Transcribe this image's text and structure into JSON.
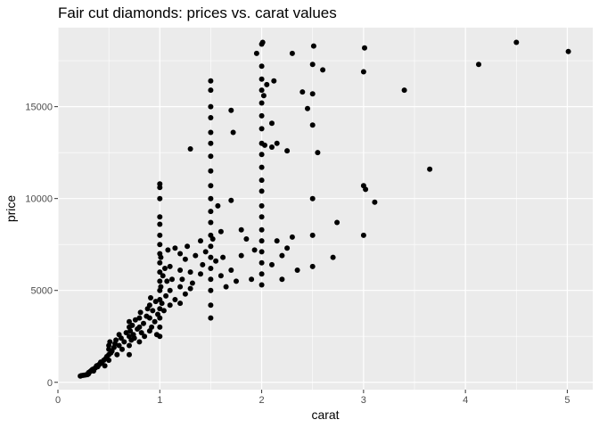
{
  "chart_data": {
    "type": "scatter",
    "title": "Fair cut diamonds: prices vs. carat values",
    "xlabel": "carat",
    "ylabel": "price",
    "xlim": [
      0,
      5.25
    ],
    "ylim": [
      -400,
      19300
    ],
    "x_ticks": [
      0,
      1,
      2,
      3,
      4,
      5
    ],
    "x_tick_labels": [
      "0",
      "1",
      "2",
      "3",
      "4",
      "5"
    ],
    "y_ticks": [
      0,
      5000,
      10000,
      15000
    ],
    "y_tick_labels": [
      "0",
      "5000",
      "10000",
      "15000"
    ],
    "grid": true,
    "legend": "none",
    "colors": {
      "panel": "#ebebeb",
      "grid": "#ffffff",
      "point": "#000000"
    },
    "series": [
      {
        "values": [
          [
            0.22,
            337
          ],
          [
            0.23,
            360
          ],
          [
            0.25,
            380
          ],
          [
            0.27,
            400
          ],
          [
            0.29,
            420
          ],
          [
            0.3,
            460
          ],
          [
            0.3,
            520
          ],
          [
            0.31,
            560
          ],
          [
            0.32,
            600
          ],
          [
            0.33,
            650
          ],
          [
            0.34,
            700
          ],
          [
            0.35,
            620
          ],
          [
            0.36,
            750
          ],
          [
            0.37,
            800
          ],
          [
            0.38,
            900
          ],
          [
            0.39,
            850
          ],
          [
            0.4,
            950
          ],
          [
            0.41,
            1000
          ],
          [
            0.42,
            1100
          ],
          [
            0.43,
            1050
          ],
          [
            0.45,
            1200
          ],
          [
            0.46,
            900
          ],
          [
            0.47,
            1300
          ],
          [
            0.48,
            1400
          ],
          [
            0.5,
            1500
          ],
          [
            0.5,
            1800
          ],
          [
            0.5,
            2000
          ],
          [
            0.5,
            1200
          ],
          [
            0.51,
            2200
          ],
          [
            0.52,
            1600
          ],
          [
            0.53,
            1700
          ],
          [
            0.55,
            1900
          ],
          [
            0.56,
            2100
          ],
          [
            0.57,
            2300
          ],
          [
            0.58,
            1500
          ],
          [
            0.6,
            2000
          ],
          [
            0.6,
            2600
          ],
          [
            0.62,
            2400
          ],
          [
            0.63,
            1800
          ],
          [
            0.65,
            2200
          ],
          [
            0.67,
            2700
          ],
          [
            0.7,
            1500
          ],
          [
            0.7,
            2000
          ],
          [
            0.7,
            2500
          ],
          [
            0.7,
            3000
          ],
          [
            0.7,
            3300
          ],
          [
            0.71,
            2800
          ],
          [
            0.72,
            2300
          ],
          [
            0.73,
            3100
          ],
          [
            0.74,
            2600
          ],
          [
            0.75,
            2400
          ],
          [
            0.76,
            3400
          ],
          [
            0.78,
            2900
          ],
          [
            0.8,
            2200
          ],
          [
            0.8,
            3000
          ],
          [
            0.8,
            3500
          ],
          [
            0.81,
            3800
          ],
          [
            0.82,
            2700
          ],
          [
            0.84,
            3200
          ],
          [
            0.85,
            2500
          ],
          [
            0.87,
            3600
          ],
          [
            0.88,
            4000
          ],
          [
            0.9,
            2800
          ],
          [
            0.9,
            3500
          ],
          [
            0.9,
            4200
          ],
          [
            0.91,
            4600
          ],
          [
            0.92,
            3000
          ],
          [
            0.93,
            3900
          ],
          [
            0.95,
            3300
          ],
          [
            0.96,
            4400
          ],
          [
            0.97,
            2600
          ],
          [
            0.98,
            3700
          ],
          [
            1.0,
            2500
          ],
          [
            1.0,
            3000
          ],
          [
            1.0,
            3500
          ],
          [
            1.0,
            4000
          ],
          [
            1.0,
            4500
          ],
          [
            1.0,
            5000
          ],
          [
            1.0,
            5500
          ],
          [
            1.0,
            6000
          ],
          [
            1.0,
            6500
          ],
          [
            1.0,
            7000
          ],
          [
            1.0,
            7500
          ],
          [
            1.0,
            8000
          ],
          [
            1.0,
            8600
          ],
          [
            1.0,
            9000
          ],
          [
            1.0,
            10000
          ],
          [
            1.0,
            10600
          ],
          [
            1.0,
            10800
          ],
          [
            1.01,
            5200
          ],
          [
            1.01,
            6800
          ],
          [
            1.02,
            4300
          ],
          [
            1.03,
            5800
          ],
          [
            1.04,
            3900
          ],
          [
            1.05,
            6200
          ],
          [
            1.06,
            4700
          ],
          [
            1.07,
            5500
          ],
          [
            1.08,
            7200
          ],
          [
            1.1,
            4200
          ],
          [
            1.1,
            5000
          ],
          [
            1.1,
            6300
          ],
          [
            1.12,
            5600
          ],
          [
            1.15,
            4500
          ],
          [
            1.15,
            7300
          ],
          [
            1.2,
            4300
          ],
          [
            1.2,
            5200
          ],
          [
            1.2,
            6100
          ],
          [
            1.2,
            7000
          ],
          [
            1.22,
            5600
          ],
          [
            1.25,
            4800
          ],
          [
            1.25,
            6700
          ],
          [
            1.27,
            7400
          ],
          [
            1.3,
            5100
          ],
          [
            1.3,
            6000
          ],
          [
            1.3,
            12700
          ],
          [
            1.32,
            5400
          ],
          [
            1.35,
            6900
          ],
          [
            1.4,
            5900
          ],
          [
            1.4,
            7700
          ],
          [
            1.42,
            6400
          ],
          [
            1.45,
            7100
          ],
          [
            1.5,
            3500
          ],
          [
            1.5,
            4200
          ],
          [
            1.5,
            5000
          ],
          [
            1.5,
            5600
          ],
          [
            1.5,
            6200
          ],
          [
            1.5,
            6800
          ],
          [
            1.5,
            7400
          ],
          [
            1.5,
            8000
          ],
          [
            1.5,
            8700
          ],
          [
            1.5,
            9300
          ],
          [
            1.5,
            10000
          ],
          [
            1.5,
            10700
          ],
          [
            1.5,
            11500
          ],
          [
            1.5,
            12300
          ],
          [
            1.5,
            13000
          ],
          [
            1.5,
            13600
          ],
          [
            1.5,
            14400
          ],
          [
            1.5,
            15000
          ],
          [
            1.5,
            15900
          ],
          [
            1.5,
            16400
          ],
          [
            1.52,
            7800
          ],
          [
            1.55,
            6600
          ],
          [
            1.57,
            9600
          ],
          [
            1.6,
            5800
          ],
          [
            1.6,
            8200
          ],
          [
            1.62,
            6800
          ],
          [
            1.65,
            5200
          ],
          [
            1.7,
            6100
          ],
          [
            1.7,
            9900
          ],
          [
            1.7,
            14800
          ],
          [
            1.72,
            13600
          ],
          [
            1.75,
            5500
          ],
          [
            1.8,
            8300
          ],
          [
            1.8,
            6900
          ],
          [
            1.85,
            7800
          ],
          [
            1.9,
            5600
          ],
          [
            1.93,
            7200
          ],
          [
            1.95,
            17900
          ],
          [
            2.0,
            5300
          ],
          [
            2.0,
            5900
          ],
          [
            2.0,
            6500
          ],
          [
            2.0,
            7100
          ],
          [
            2.0,
            7700
          ],
          [
            2.0,
            8300
          ],
          [
            2.0,
            9000
          ],
          [
            2.0,
            9600
          ],
          [
            2.0,
            10400
          ],
          [
            2.0,
            11000
          ],
          [
            2.0,
            11700
          ],
          [
            2.0,
            12400
          ],
          [
            2.0,
            13000
          ],
          [
            2.0,
            13800
          ],
          [
            2.0,
            14500
          ],
          [
            2.0,
            15200
          ],
          [
            2.0,
            15900
          ],
          [
            2.0,
            16500
          ],
          [
            2.0,
            17200
          ],
          [
            2.0,
            18400
          ],
          [
            2.01,
            18500
          ],
          [
            2.02,
            15600
          ],
          [
            2.03,
            12900
          ],
          [
            2.05,
            16200
          ],
          [
            2.1,
            6400
          ],
          [
            2.1,
            12800
          ],
          [
            2.1,
            14100
          ],
          [
            2.12,
            16400
          ],
          [
            2.15,
            7700
          ],
          [
            2.15,
            13000
          ],
          [
            2.2,
            5600
          ],
          [
            2.2,
            6900
          ],
          [
            2.25,
            7300
          ],
          [
            2.25,
            12600
          ],
          [
            2.3,
            7900
          ],
          [
            2.3,
            17900
          ],
          [
            2.35,
            6100
          ],
          [
            2.4,
            15800
          ],
          [
            2.45,
            14900
          ],
          [
            2.5,
            6300
          ],
          [
            2.5,
            8000
          ],
          [
            2.5,
            10000
          ],
          [
            2.5,
            14000
          ],
          [
            2.5,
            15700
          ],
          [
            2.5,
            17300
          ],
          [
            2.51,
            18300
          ],
          [
            2.55,
            12500
          ],
          [
            2.6,
            17000
          ],
          [
            2.7,
            6800
          ],
          [
            2.74,
            8700
          ],
          [
            3.0,
            8000
          ],
          [
            3.0,
            10700
          ],
          [
            3.0,
            16900
          ],
          [
            3.01,
            18200
          ],
          [
            3.02,
            10500
          ],
          [
            3.11,
            9800
          ],
          [
            3.4,
            15900
          ],
          [
            3.65,
            11600
          ],
          [
            4.13,
            17300
          ],
          [
            4.5,
            18500
          ],
          [
            5.01,
            18000
          ]
        ]
      }
    ]
  }
}
